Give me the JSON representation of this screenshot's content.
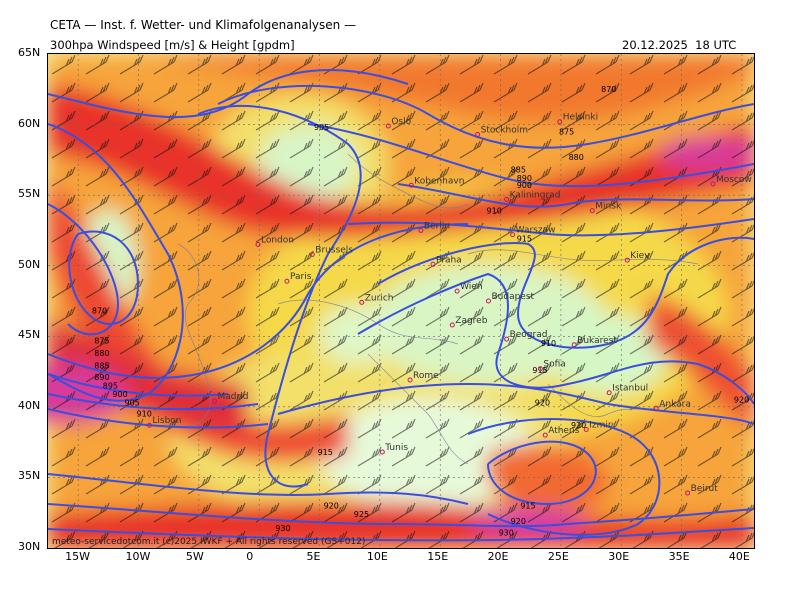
{
  "header": {
    "title": "CETA — Inst. f. Wetter- und Klimafolgenanalysen —",
    "product": "300hpa Windspeed [m/s] & Height [gpdm]",
    "valid_time": "20.12.2025  18 UTC"
  },
  "axes": {
    "lat_labels": [
      "65N",
      "60N",
      "55N",
      "50N",
      "45N",
      "40N",
      "35N",
      "30N"
    ],
    "lon_labels": [
      "15W",
      "10W",
      "5W",
      "0",
      "5E",
      "10E",
      "15E",
      "20E",
      "25E",
      "30E",
      "35E",
      "40E"
    ]
  },
  "cities": [
    {
      "name": "Oslo",
      "lon": 10.7,
      "lat": 59.9
    },
    {
      "name": "Stockholm",
      "lon": 18.1,
      "lat": 59.3
    },
    {
      "name": "Helsinki",
      "lon": 24.9,
      "lat": 60.2
    },
    {
      "name": "Kobenhavn",
      "lon": 12.6,
      "lat": 55.7
    },
    {
      "name": "Kaliningrad",
      "lon": 20.5,
      "lat": 54.7
    },
    {
      "name": "Minsk",
      "lon": 27.6,
      "lat": 53.9
    },
    {
      "name": "Moscow",
      "lon": 37.6,
      "lat": 55.8
    },
    {
      "name": "London",
      "lon": -0.1,
      "lat": 51.5
    },
    {
      "name": "Brussels",
      "lon": 4.4,
      "lat": 50.8
    },
    {
      "name": "Berlin",
      "lon": 13.4,
      "lat": 52.5
    },
    {
      "name": "Warszaw",
      "lon": 21.0,
      "lat": 52.2
    },
    {
      "name": "Kiev",
      "lon": 30.5,
      "lat": 50.4
    },
    {
      "name": "Paris",
      "lon": 2.3,
      "lat": 48.9
    },
    {
      "name": "Praha",
      "lon": 14.4,
      "lat": 50.1
    },
    {
      "name": "Wien",
      "lon": 16.4,
      "lat": 48.2
    },
    {
      "name": "Budapest",
      "lon": 19.0,
      "lat": 47.5
    },
    {
      "name": "Zurich",
      "lon": 8.5,
      "lat": 47.4
    },
    {
      "name": "Zagreb",
      "lon": 16.0,
      "lat": 45.8
    },
    {
      "name": "Beograd",
      "lon": 20.5,
      "lat": 44.8
    },
    {
      "name": "Bukarest",
      "lon": 26.1,
      "lat": 44.4
    },
    {
      "name": "Sofia",
      "lon": 23.3,
      "lat": 42.7
    },
    {
      "name": "Istanbul",
      "lon": 29.0,
      "lat": 41.0
    },
    {
      "name": "Ankara",
      "lon": 32.9,
      "lat": 39.9
    },
    {
      "name": "Rome",
      "lon": 12.5,
      "lat": 41.9
    },
    {
      "name": "Madrid",
      "lon": -3.7,
      "lat": 40.4
    },
    {
      "name": "Lisbon",
      "lon": -9.1,
      "lat": 38.7
    },
    {
      "name": "Tunis",
      "lon": 10.2,
      "lat": 36.8
    },
    {
      "name": "Athens",
      "lon": 23.7,
      "lat": 38.0
    },
    {
      "name": "Izmir",
      "lon": 27.1,
      "lat": 38.4
    },
    {
      "name": "Beirut",
      "lon": 35.5,
      "lat": 33.9
    }
  ],
  "contour_labels": [
    {
      "text": "870",
      "lon": 29.0,
      "lat": 62.3
    },
    {
      "text": "875",
      "lon": 25.5,
      "lat": 59.3
    },
    {
      "text": "880",
      "lon": 26.3,
      "lat": 57.5
    },
    {
      "text": "885",
      "lon": 21.5,
      "lat": 56.6
    },
    {
      "text": "890",
      "lon": 22.0,
      "lat": 56.0
    },
    {
      "text": "900",
      "lon": 22.0,
      "lat": 55.5
    },
    {
      "text": "905",
      "lon": 5.2,
      "lat": 59.6
    },
    {
      "text": "910",
      "lon": 19.5,
      "lat": 53.7
    },
    {
      "text": "915",
      "lon": 22.0,
      "lat": 51.7
    },
    {
      "text": "870",
      "lon": -13.2,
      "lat": 46.6
    },
    {
      "text": "875",
      "lon": -13.0,
      "lat": 44.5
    },
    {
      "text": "880",
      "lon": -13.0,
      "lat": 43.6
    },
    {
      "text": "885",
      "lon": -13.0,
      "lat": 42.7
    },
    {
      "text": "890",
      "lon": -13.0,
      "lat": 41.9
    },
    {
      "text": "895",
      "lon": -12.3,
      "lat": 41.3
    },
    {
      "text": "900",
      "lon": -11.5,
      "lat": 40.7
    },
    {
      "text": "905",
      "lon": -10.5,
      "lat": 40.1
    },
    {
      "text": "910",
      "lon": -9.5,
      "lat": 39.3
    },
    {
      "text": "915",
      "lon": 5.5,
      "lat": 36.6
    },
    {
      "text": "910",
      "lon": 24.0,
      "lat": 44.3
    },
    {
      "text": "915",
      "lon": 23.3,
      "lat": 42.4
    },
    {
      "text": "920",
      "lon": 23.5,
      "lat": 40.1
    },
    {
      "text": "920",
      "lon": 40.0,
      "lat": 40.3
    },
    {
      "text": "920",
      "lon": 26.5,
      "lat": 38.5
    },
    {
      "text": "920",
      "lon": 6.0,
      "lat": 32.8
    },
    {
      "text": "925",
      "lon": 8.5,
      "lat": 32.2
    },
    {
      "text": "915",
      "lon": 22.3,
      "lat": 32.8
    },
    {
      "text": "920",
      "lon": 21.5,
      "lat": 31.7
    },
    {
      "text": "930",
      "lon": 20.5,
      "lat": 30.9
    },
    {
      "text": "930",
      "lon": 2.0,
      "lat": 31.2
    }
  ],
  "footer": "meteo-servicedotcom.it (c)2025 IWKF + All rights reserved (GS+012)"
}
